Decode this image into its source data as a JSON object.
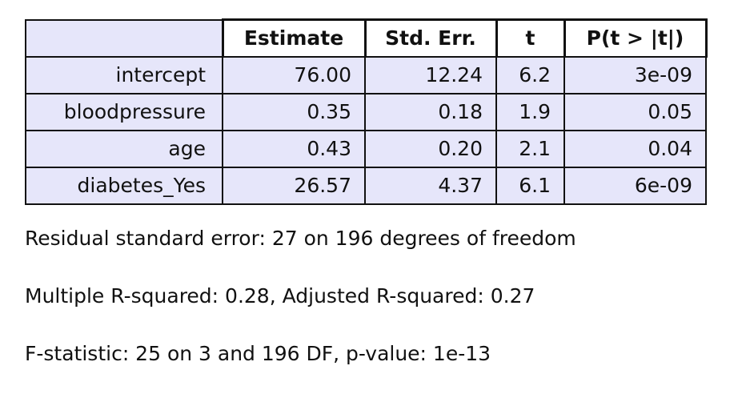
{
  "table": {
    "header": [
      "Estimate",
      "Std. Err.",
      "t",
      "P(t > |t|)"
    ],
    "rows": [
      [
        "intercept",
        "76.00",
        "12.24",
        "6.2",
        "3e-09"
      ],
      [
        "bloodpressure",
        "0.35",
        "0.18",
        "1.9",
        "0.05"
      ],
      [
        "age",
        "0.43",
        "0.20",
        "2.1",
        "0.04"
      ],
      [
        "diabetes_Yes",
        "26.57",
        "4.37",
        "6.1",
        "6e-09"
      ]
    ]
  },
  "summary": [
    "Residual standard error: 27 on 196 degrees of freedom",
    "Multiple R-squared: 0.28, Adjusted R-squared: 0.27",
    "F-statistic: 25 on 3 and 196 DF, p-value: 1e-13"
  ]
}
